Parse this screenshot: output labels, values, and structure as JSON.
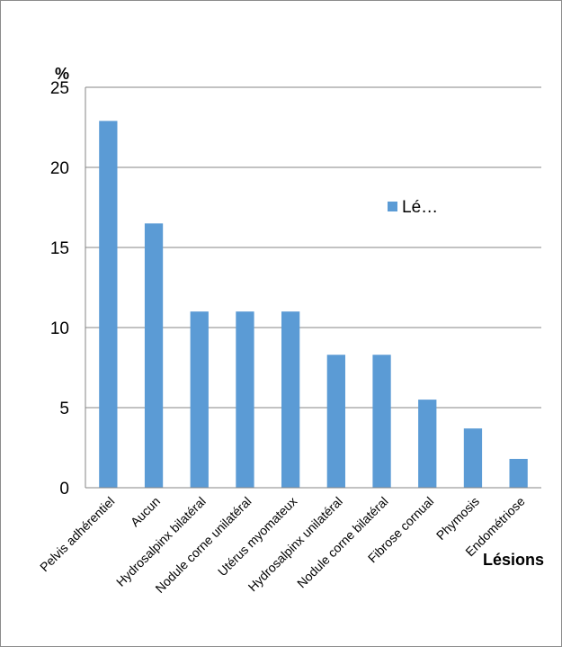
{
  "chart_data": {
    "type": "bar",
    "title": "",
    "xlabel": "Lésions",
    "ylabel": "%",
    "ylim": [
      0,
      25
    ],
    "yticks": [
      0,
      5,
      10,
      15,
      20,
      25
    ],
    "grid": true,
    "legend": "right",
    "categories": [
      "Pelvis adhérentiel",
      "Aucun",
      "Hydrosalpinx bilatéral",
      "Nodule corne unilatéral",
      "Utérus myomateux",
      "Hydrosalpinx unilatéral",
      "Nodule corne bilatéral",
      "Fibrose cornual",
      "Phymosis",
      "Endométriose"
    ],
    "series": [
      {
        "name": "Lé…",
        "color": "#5B9BD5",
        "values": [
          22.9,
          16.5,
          11.0,
          11.0,
          11.0,
          8.3,
          8.3,
          5.5,
          3.7,
          1.8
        ]
      }
    ]
  }
}
